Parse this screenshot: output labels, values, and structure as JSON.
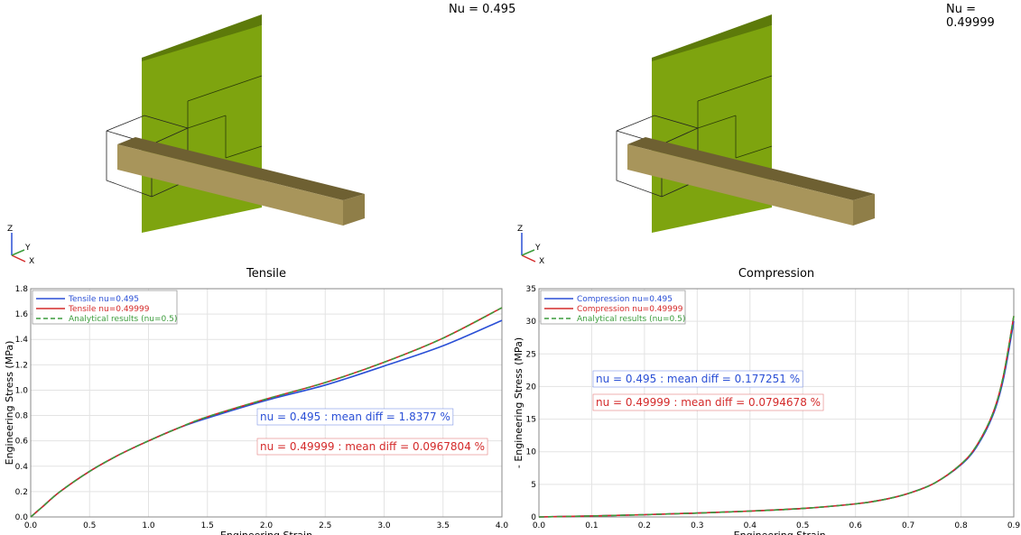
{
  "views": [
    {
      "label": "Nu = 0.495",
      "triad": {
        "z": "Z",
        "y": "Y",
        "x": "X"
      },
      "colors": {
        "plate": "#7ea40f",
        "beam": "#a8955b"
      }
    },
    {
      "label": "Nu = 0.49999",
      "triad": {
        "z": "Z",
        "y": "Y",
        "x": "X"
      },
      "colors": {
        "plate": "#7ea40f",
        "beam": "#a8955b"
      }
    }
  ],
  "chart_data": [
    {
      "type": "line",
      "title": "Tensile",
      "xlabel": "Engineering Strain",
      "ylabel": "Engineering Stress (MPa)",
      "xlim": [
        0,
        4.0
      ],
      "ylim": [
        0,
        1.8
      ],
      "xticks": [
        "0.0",
        "0.5",
        "1.0",
        "1.5",
        "2.0",
        "2.5",
        "3.0",
        "3.5",
        "4.0"
      ],
      "yticks": [
        "0.0",
        "0.2",
        "0.4",
        "0.6",
        "0.8",
        "1.0",
        "1.2",
        "1.4",
        "1.6",
        "1.8"
      ],
      "grid": true,
      "legend_position": "top-left",
      "x": [
        0,
        0.05,
        0.1,
        0.25,
        0.5,
        0.75,
        1.0,
        1.25,
        1.5,
        2.0,
        2.5,
        3.0,
        3.5,
        4.0
      ],
      "series": [
        {
          "name": "Tensile nu=0.495",
          "color": "#2a4fd6",
          "dash": "solid",
          "values": [
            0,
            0.04,
            0.08,
            0.2,
            0.36,
            0.49,
            0.6,
            0.7,
            0.78,
            0.92,
            1.04,
            1.19,
            1.35,
            1.55
          ]
        },
        {
          "name": "Tensile nu=0.49999",
          "color": "#d42a2a",
          "dash": "solid",
          "values": [
            0,
            0.04,
            0.08,
            0.2,
            0.36,
            0.49,
            0.6,
            0.7,
            0.79,
            0.93,
            1.06,
            1.22,
            1.41,
            1.65
          ]
        },
        {
          "name": "Analytical results (nu=0.5)",
          "color": "#3c9c3c",
          "dash": "dashed",
          "values": [
            0,
            0.04,
            0.08,
            0.2,
            0.36,
            0.49,
            0.6,
            0.7,
            0.79,
            0.93,
            1.06,
            1.22,
            1.41,
            1.65
          ]
        }
      ],
      "annotations": [
        {
          "text": "nu = 0.495 : mean diff = 1.8377 %",
          "color": "#2a4fd6"
        },
        {
          "text": "nu = 0.49999 : mean diff = 0.0967804 %",
          "color": "#d42a2a"
        }
      ]
    },
    {
      "type": "line",
      "title": "Compression",
      "xlabel": "- Engineering Strain",
      "ylabel": "- Engineering Stress (MPa)",
      "xlim": [
        0,
        0.9
      ],
      "ylim": [
        0,
        35
      ],
      "xticks": [
        "0.0",
        "0.1",
        "0.2",
        "0.3",
        "0.4",
        "0.5",
        "0.6",
        "0.7",
        "0.8",
        "0.9"
      ],
      "yticks": [
        "0",
        "5",
        "10",
        "15",
        "20",
        "25",
        "30",
        "35"
      ],
      "grid": true,
      "legend_position": "top-left",
      "x": [
        0,
        0.1,
        0.2,
        0.3,
        0.4,
        0.5,
        0.6,
        0.65,
        0.7,
        0.75,
        0.8,
        0.83,
        0.86,
        0.88,
        0.9
      ],
      "series": [
        {
          "name": "Compression nu=0.495",
          "color": "#2a4fd6",
          "dash": "solid",
          "values": [
            0,
            0.15,
            0.35,
            0.6,
            0.9,
            1.3,
            2.0,
            2.6,
            3.6,
            5.2,
            8.0,
            10.8,
            15.5,
            21.0,
            30.0
          ]
        },
        {
          "name": "Compression nu=0.49999",
          "color": "#d42a2a",
          "dash": "solid",
          "values": [
            0,
            0.15,
            0.35,
            0.6,
            0.9,
            1.3,
            2.0,
            2.6,
            3.6,
            5.2,
            8.1,
            11.0,
            15.8,
            21.5,
            30.8
          ]
        },
        {
          "name": "Analytical results (nu=0.5)",
          "color": "#3c9c3c",
          "dash": "dashed",
          "values": [
            0,
            0.15,
            0.35,
            0.6,
            0.9,
            1.3,
            2.0,
            2.6,
            3.6,
            5.2,
            8.1,
            11.0,
            15.8,
            21.5,
            30.8
          ]
        }
      ],
      "annotations": [
        {
          "text": "nu = 0.495 : mean diff = 0.177251 %",
          "color": "#2a4fd6"
        },
        {
          "text": "nu = 0.49999 : mean diff = 0.0794678 %",
          "color": "#d42a2a"
        }
      ]
    }
  ]
}
